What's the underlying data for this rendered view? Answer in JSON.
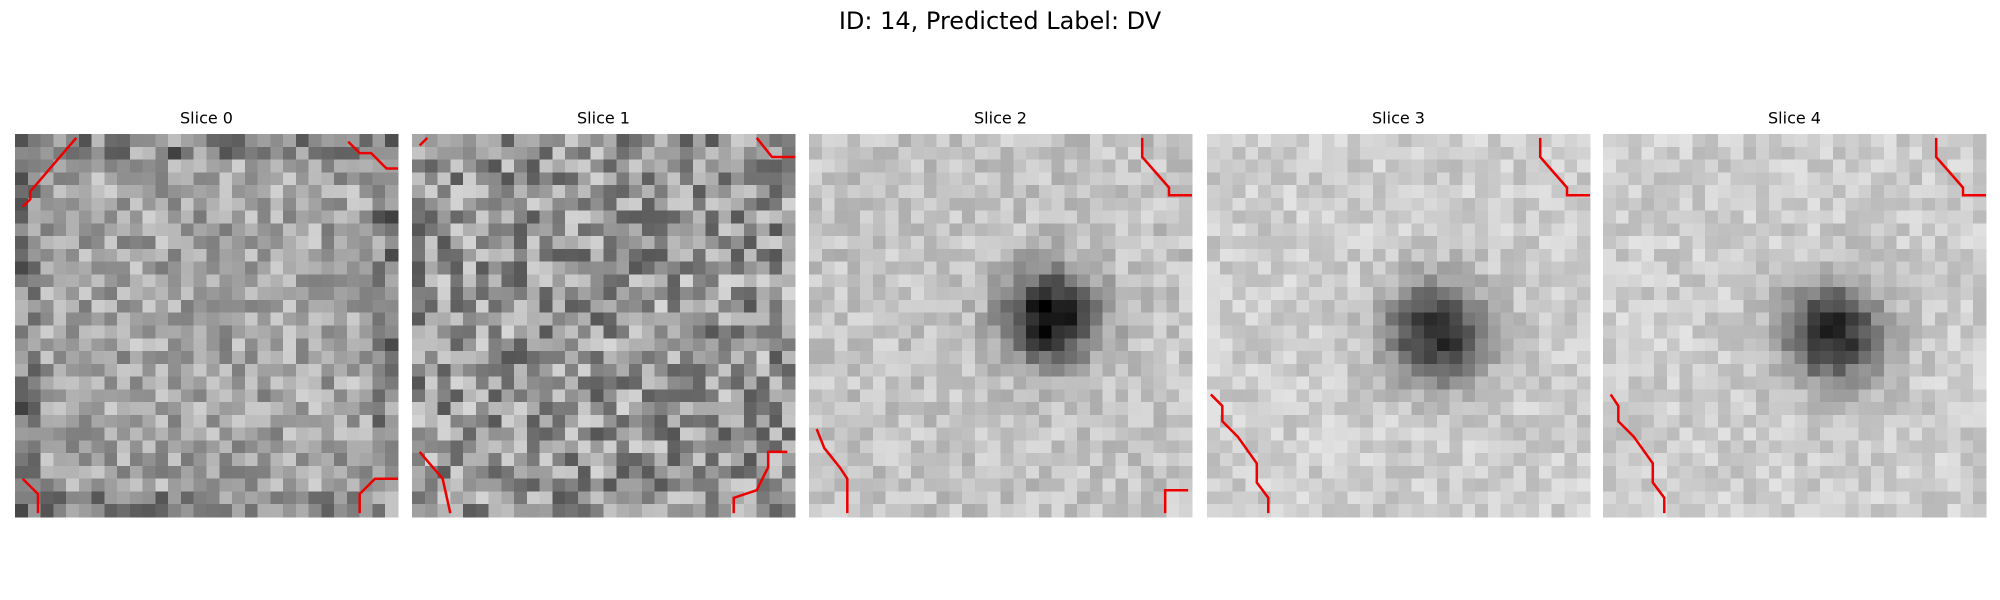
{
  "figure": {
    "title": "ID: 14, Predicted Label: DV",
    "panels": [
      {
        "title": "Slice 0"
      },
      {
        "title": "Slice 1"
      },
      {
        "title": "Slice 2"
      },
      {
        "title": "Slice 3"
      },
      {
        "title": "Slice 4"
      }
    ]
  }
}
